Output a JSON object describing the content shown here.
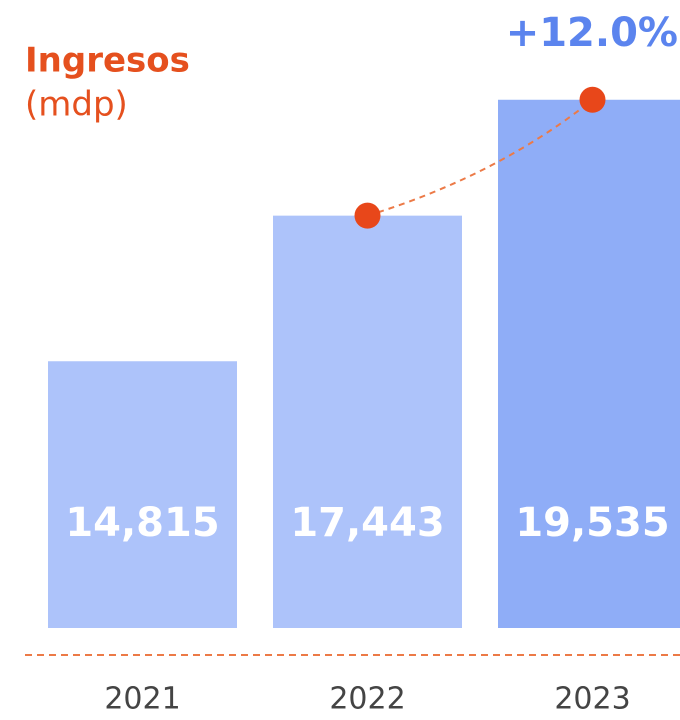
{
  "chart_data": {
    "type": "bar",
    "title": "Ingresos",
    "subtitle": "(mdp)",
    "annotation": "+12.0%",
    "categories": [
      "2021",
      "2022",
      "2023"
    ],
    "values": [
      14815,
      17443,
      19535
    ],
    "value_labels": [
      "14,815",
      "17,443",
      "19,535"
    ],
    "colors": [
      "#adc3fa",
      "#adc3fa",
      "#8fadf7"
    ],
    "accent_color": "#e8471a",
    "ylim": [
      10000,
      20000
    ]
  }
}
